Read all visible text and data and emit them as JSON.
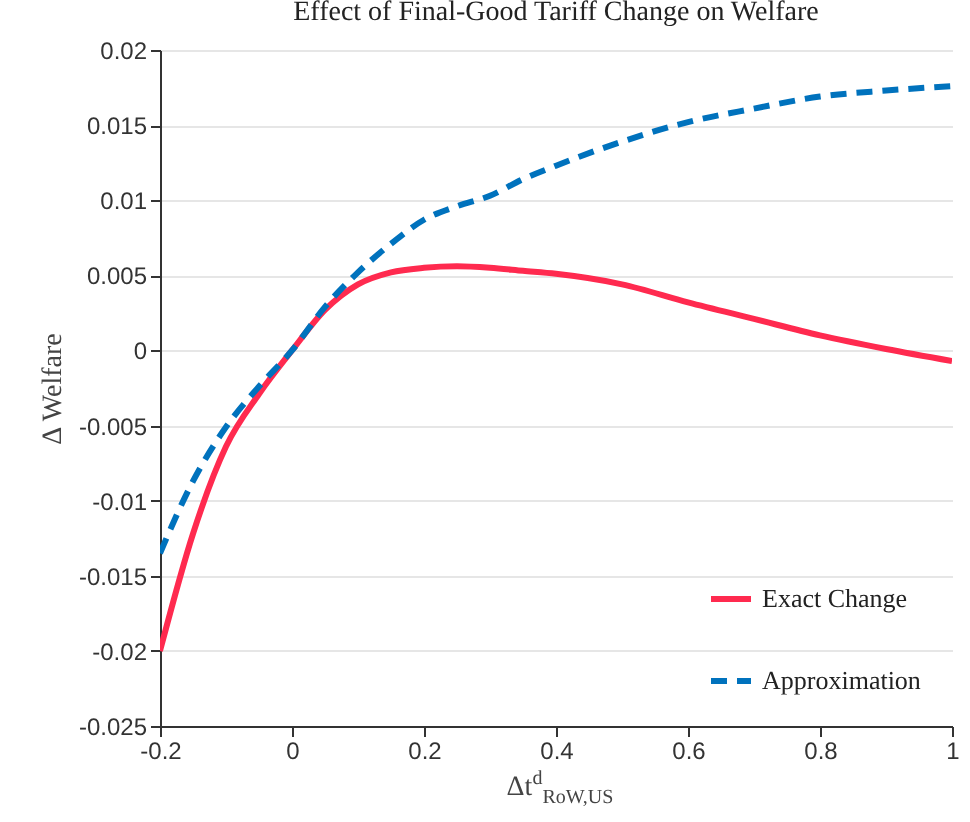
{
  "chart_data": {
    "type": "line",
    "title": "Effect of Final-Good Tariff Change on Welfare",
    "xlabel": "Δt$^{d}$$_{RoW,US}$",
    "ylabel": "Δ Welfare",
    "x": [
      -0.2,
      -0.15,
      -0.1,
      -0.05,
      0,
      0.05,
      0.1,
      0.15,
      0.2,
      0.25,
      0.3,
      0.35,
      0.4,
      0.5,
      0.6,
      0.7,
      0.8,
      0.9,
      1
    ],
    "series": [
      {
        "name": "Exact Change",
        "color": "#ff2a4f",
        "line_style": "solid",
        "values": [
          -0.02,
          -0.0122,
          -0.0064,
          -0.0029,
          0,
          0.0027,
          0.0044,
          0.0052,
          0.0055,
          0.0056,
          0.0055,
          0.0053,
          0.0051,
          0.0044,
          0.0032,
          0.0021,
          0.001,
          0.0001,
          -0.0007
        ]
      },
      {
        "name": "Approximation",
        "color": "#0072bd",
        "line_style": "dashed",
        "values": [
          -0.0135,
          -0.0087,
          -0.0051,
          -0.0024,
          0,
          0.0029,
          0.0052,
          0.0071,
          0.0087,
          0.0096,
          0.0103,
          0.0114,
          0.0123,
          0.0139,
          0.0152,
          0.0161,
          0.0169,
          0.0173,
          0.0176
        ]
      }
    ],
    "xlim": [
      -0.2,
      1
    ],
    "xticks": [
      -0.2,
      0,
      0.2,
      0.4,
      0.6,
      0.8,
      1
    ],
    "ylim": [
      -0.025,
      0.02
    ],
    "yticks": [
      -0.025,
      -0.02,
      -0.015,
      -0.01,
      -0.005,
      0,
      0.005,
      0.01,
      0.015,
      0.02
    ],
    "grid": "y",
    "legend": "bottom right"
  }
}
